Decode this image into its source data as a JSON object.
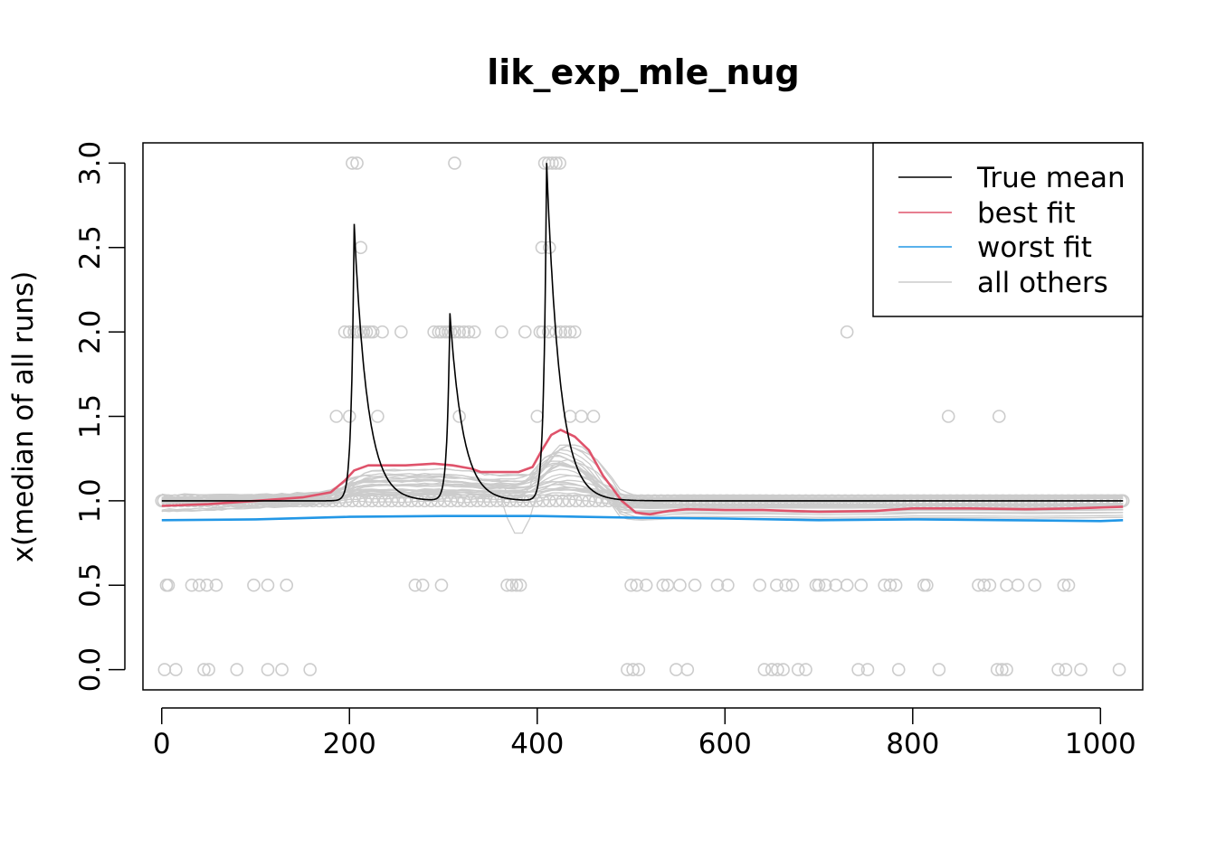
{
  "chart_data": {
    "type": "line",
    "title": "lik_exp_mle_nug",
    "xlabel": "",
    "ylabel": "x(median of all runs)",
    "xlim": [
      -20,
      1045
    ],
    "ylim": [
      -0.12,
      3.12
    ],
    "x_ticks": [
      0,
      200,
      400,
      600,
      800,
      1000
    ],
    "x_tick_labels": [
      "0",
      "200",
      "400",
      "600",
      "800",
      "1000"
    ],
    "y_ticks": [
      0,
      0.5,
      1,
      1.5,
      2,
      2.5,
      3
    ],
    "y_tick_labels": [
      "0.0",
      "0.5",
      "1.0",
      "1.5",
      "2.0",
      "2.5",
      "3.0"
    ],
    "grid": false,
    "legend_position": "top-right",
    "legend": [
      {
        "label": "True mean",
        "color": "#000000"
      },
      {
        "label": "best fit",
        "color": "#DF536B"
      },
      {
        "label": "worst fit",
        "color": "#2297E6"
      },
      {
        "label": "all others",
        "color": "#CCCCCC"
      }
    ],
    "true_mean": {
      "baseline": 1.0,
      "spikes": [
        {
          "x": 205,
          "peak": 2.64
        },
        {
          "x": 307,
          "peak": 2.11
        },
        {
          "x": 410,
          "peak": 3.0
        }
      ]
    },
    "series": [
      {
        "name": "best fit",
        "color": "#DF536B",
        "x": [
          0,
          50,
          100,
          150,
          180,
          195,
          205,
          220,
          240,
          260,
          290,
          310,
          330,
          340,
          360,
          380,
          395,
          405,
          415,
          425,
          440,
          455,
          470,
          490,
          505,
          520,
          540,
          560,
          600,
          640,
          700,
          760,
          800,
          860,
          920,
          970,
          1000,
          1024
        ],
        "y": [
          0.97,
          0.98,
          1.0,
          1.02,
          1.05,
          1.12,
          1.18,
          1.21,
          1.21,
          1.21,
          1.22,
          1.21,
          1.19,
          1.17,
          1.17,
          1.17,
          1.2,
          1.3,
          1.39,
          1.42,
          1.38,
          1.3,
          1.15,
          1.0,
          0.93,
          0.92,
          0.94,
          0.95,
          0.945,
          0.945,
          0.935,
          0.94,
          0.955,
          0.955,
          0.95,
          0.955,
          0.96,
          0.965
        ]
      },
      {
        "name": "worst fit",
        "color": "#2297E6",
        "x": [
          0,
          100,
          200,
          300,
          400,
          500,
          600,
          700,
          800,
          900,
          1000,
          1024
        ],
        "y": [
          0.885,
          0.89,
          0.905,
          0.91,
          0.91,
          0.9,
          0.895,
          0.885,
          0.89,
          0.885,
          0.88,
          0.885
        ]
      }
    ],
    "others": {
      "label": "all others",
      "color": "#CCCCCC",
      "count": 30,
      "y_range": [
        0.78,
        1.33
      ]
    },
    "observations": {
      "color": "#CCCCCC",
      "points": [
        [
          2,
          1
        ],
        [
          5,
          0.5
        ],
        [
          7,
          0.5
        ],
        [
          3,
          0
        ],
        [
          15,
          0
        ],
        [
          32,
          0.5
        ],
        [
          40,
          0.5
        ],
        [
          48,
          0.5
        ],
        [
          58,
          0.5
        ],
        [
          45,
          0
        ],
        [
          50,
          0
        ],
        [
          80,
          0
        ],
        [
          98,
          0.5
        ],
        [
          113,
          0.5
        ],
        [
          113,
          0
        ],
        [
          128,
          0
        ],
        [
          133,
          0.5
        ],
        [
          158,
          0
        ],
        [
          186,
          1.5
        ],
        [
          200,
          1.5
        ],
        [
          230,
          1.5
        ],
        [
          195,
          2
        ],
        [
          200,
          2
        ],
        [
          205,
          2
        ],
        [
          208,
          2
        ],
        [
          212,
          2
        ],
        [
          215,
          2
        ],
        [
          218,
          2
        ],
        [
          222,
          2
        ],
        [
          225,
          2
        ],
        [
          235,
          2
        ],
        [
          255,
          2
        ],
        [
          203,
          3
        ],
        [
          208,
          3
        ],
        [
          212,
          2.5
        ],
        [
          290,
          2
        ],
        [
          295,
          2
        ],
        [
          298,
          2
        ],
        [
          302,
          2
        ],
        [
          305,
          2
        ],
        [
          308,
          2
        ],
        [
          312,
          2
        ],
        [
          317,
          2
        ],
        [
          322,
          2
        ],
        [
          327,
          2
        ],
        [
          333,
          2
        ],
        [
          312,
          3
        ],
        [
          317,
          1.5
        ],
        [
          270,
          0.5
        ],
        [
          278,
          0.5
        ],
        [
          298,
          0.5
        ],
        [
          362,
          2
        ],
        [
          387,
          2
        ],
        [
          368,
          0.5
        ],
        [
          373,
          0.5
        ],
        [
          378,
          0.5
        ],
        [
          382,
          0.5
        ],
        [
          400,
          1.5
        ],
        [
          403,
          2
        ],
        [
          406,
          2
        ],
        [
          412,
          2
        ],
        [
          420,
          2
        ],
        [
          425,
          2
        ],
        [
          430,
          2
        ],
        [
          435,
          2
        ],
        [
          440,
          2
        ],
        [
          405,
          2.5
        ],
        [
          413,
          2.5
        ],
        [
          408,
          3
        ],
        [
          412,
          3
        ],
        [
          416,
          3
        ],
        [
          420,
          3
        ],
        [
          424,
          3
        ],
        [
          435,
          1.5
        ],
        [
          447,
          1.5
        ],
        [
          460,
          1.5
        ],
        [
          496,
          0
        ],
        [
          502,
          0
        ],
        [
          508,
          0
        ],
        [
          548,
          0
        ],
        [
          560,
          0
        ],
        [
          500,
          0.5
        ],
        [
          506,
          0.5
        ],
        [
          516,
          0.5
        ],
        [
          534,
          0.5
        ],
        [
          539,
          0.5
        ],
        [
          552,
          0.5
        ],
        [
          568,
          0.5
        ],
        [
          592,
          0.5
        ],
        [
          603,
          0.5
        ],
        [
          637,
          0.5
        ],
        [
          655,
          0.5
        ],
        [
          665,
          0.5
        ],
        [
          672,
          0.5
        ],
        [
          697,
          0.5
        ],
        [
          700,
          0.5
        ],
        [
          707,
          0.5
        ],
        [
          718,
          0.5
        ],
        [
          730,
          0.5
        ],
        [
          745,
          0.5
        ],
        [
          770,
          0.5
        ],
        [
          776,
          0.5
        ],
        [
          782,
          0.5
        ],
        [
          812,
          0.5
        ],
        [
          815,
          0.5
        ],
        [
          870,
          0.5
        ],
        [
          876,
          0.5
        ],
        [
          882,
          0.5
        ],
        [
          900,
          0.5
        ],
        [
          912,
          0.5
        ],
        [
          930,
          0.5
        ],
        [
          961,
          0.5
        ],
        [
          966,
          0.5
        ],
        [
          642,
          0
        ],
        [
          650,
          0
        ],
        [
          656,
          0
        ],
        [
          662,
          0
        ],
        [
          678,
          0
        ],
        [
          686,
          0
        ],
        [
          742,
          0
        ],
        [
          752,
          0
        ],
        [
          785,
          0
        ],
        [
          828,
          0
        ],
        [
          890,
          0
        ],
        [
          895,
          0
        ],
        [
          900,
          0
        ],
        [
          955,
          0
        ],
        [
          963,
          0
        ],
        [
          979,
          0
        ],
        [
          1020,
          0
        ],
        [
          730,
          2
        ],
        [
          838,
          1.5
        ],
        [
          892,
          1.5
        ],
        [
          1024,
          1
        ]
      ]
    }
  }
}
